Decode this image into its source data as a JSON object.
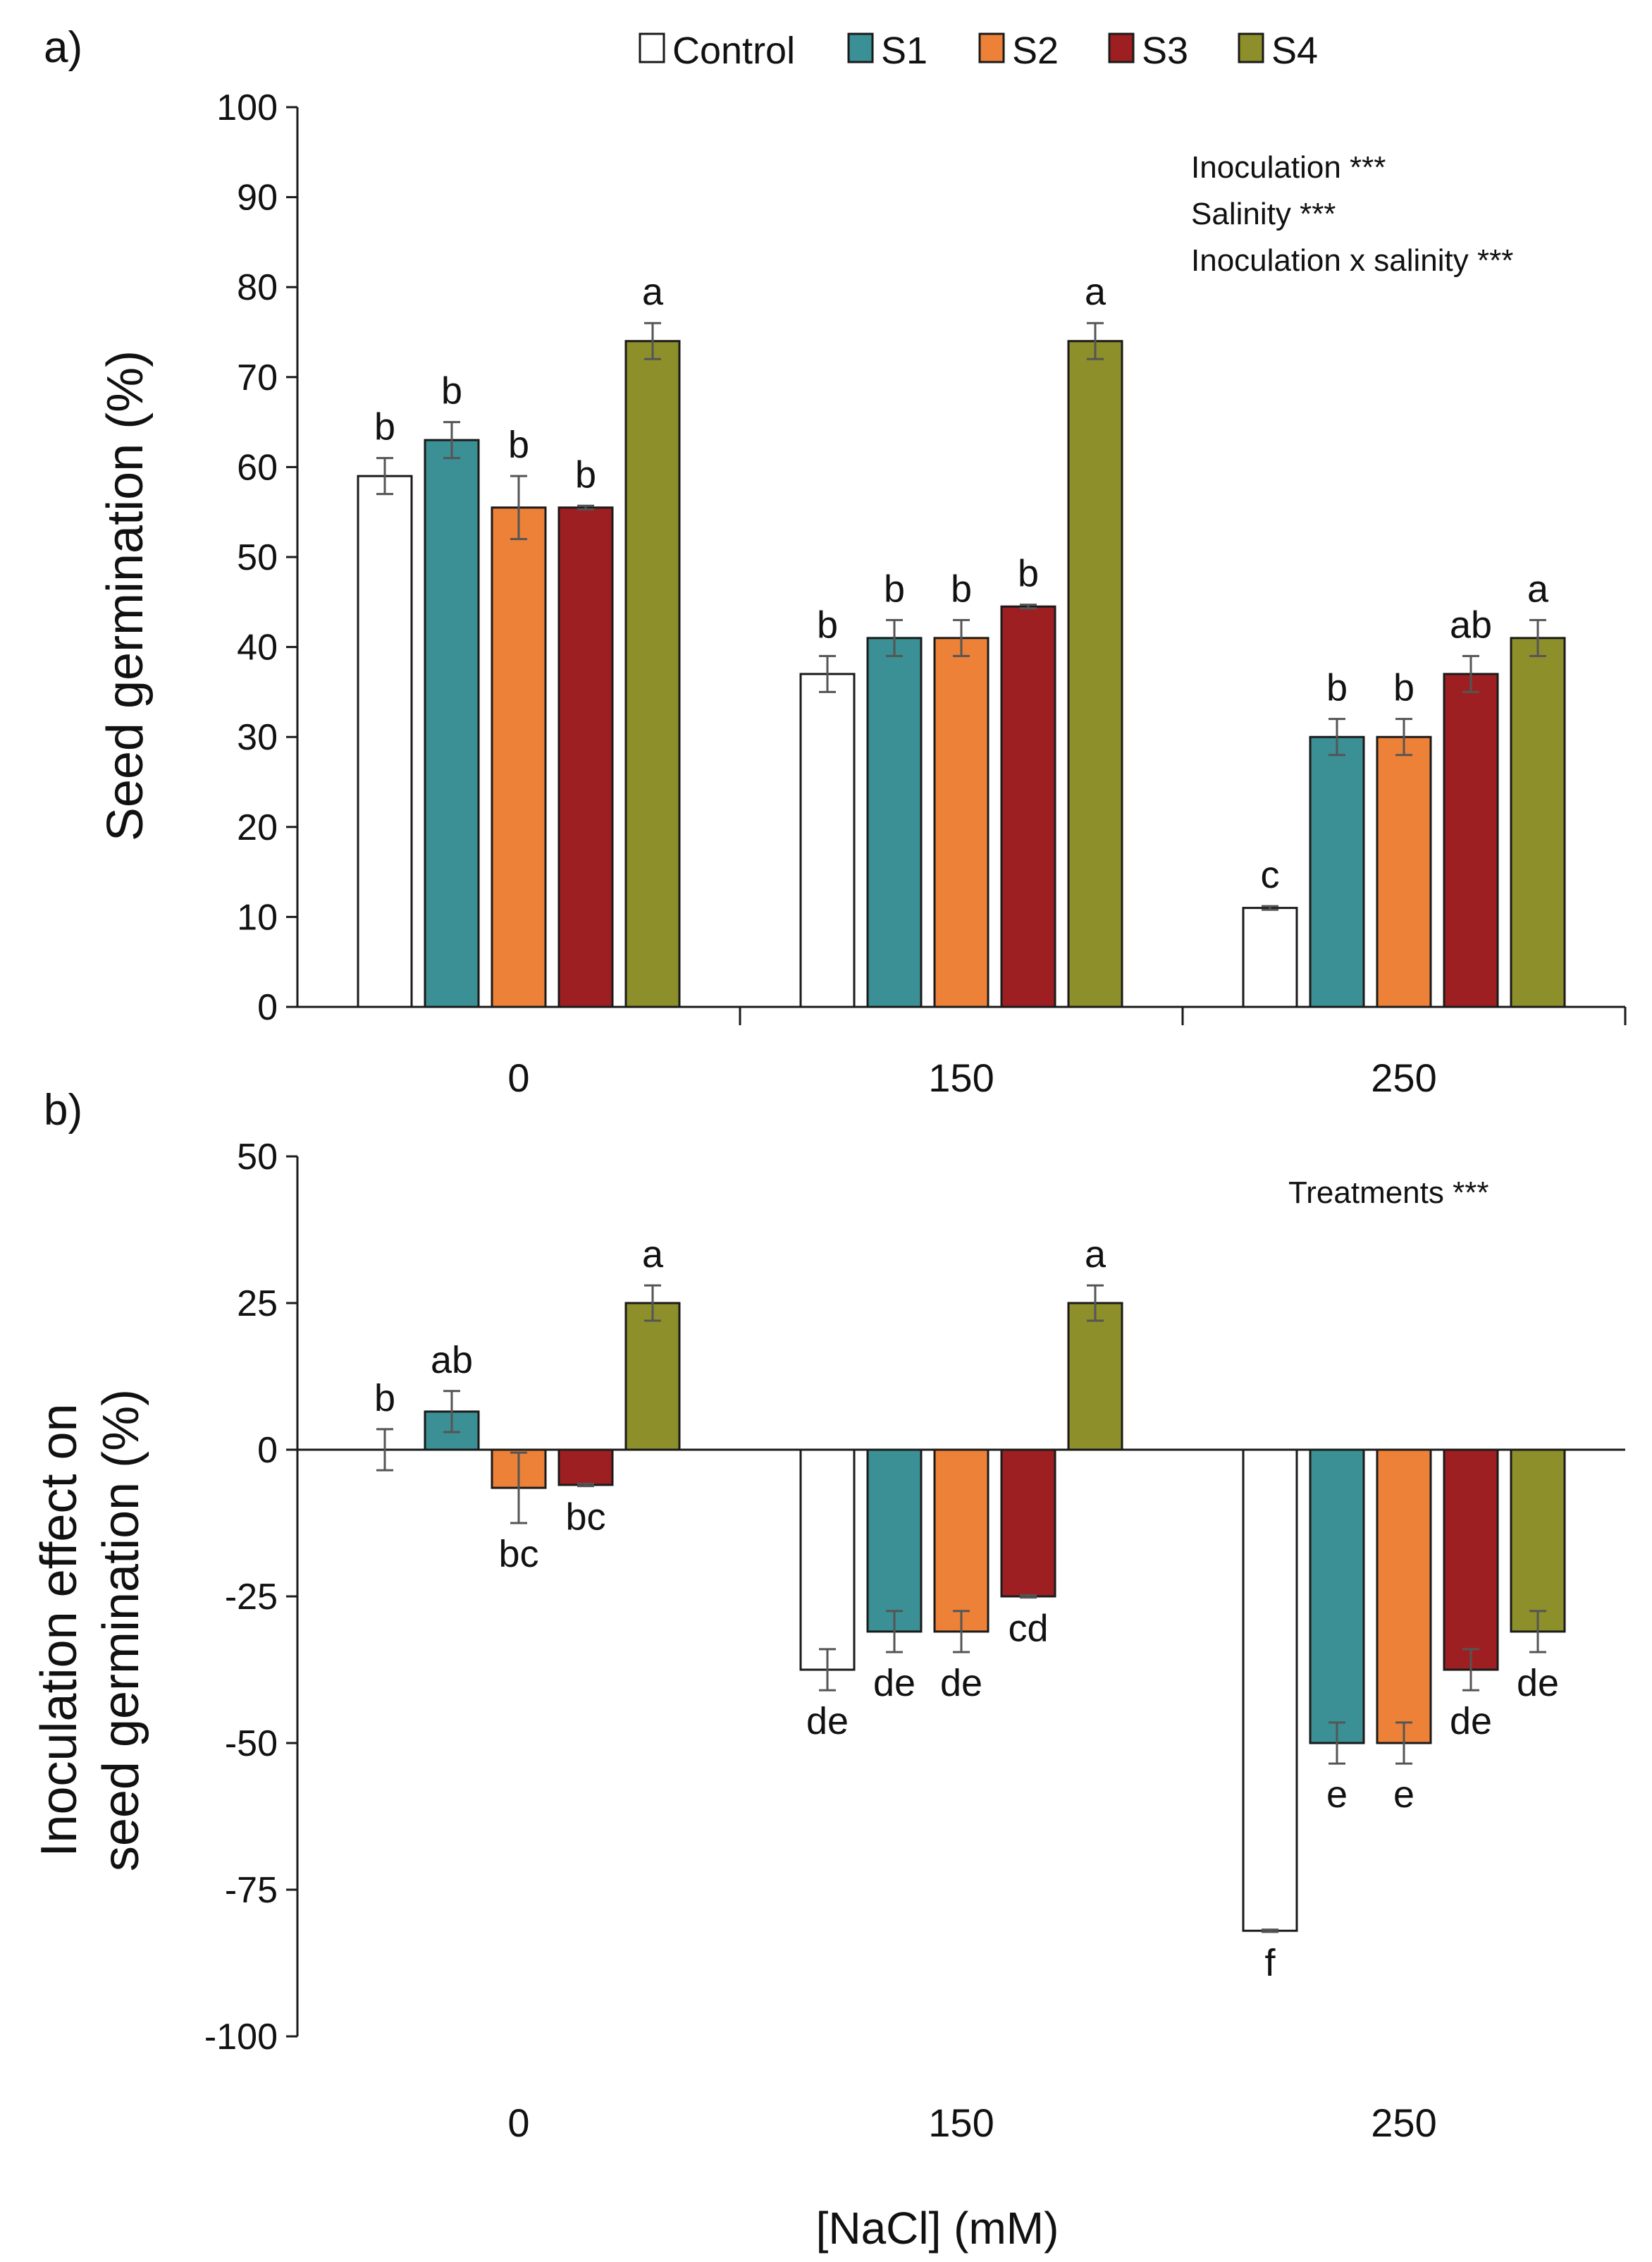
{
  "legend": {
    "entries": [
      {
        "name": "Control",
        "color": "#ffffff"
      },
      {
        "name": "S1",
        "color": "#3a9094"
      },
      {
        "name": "S2",
        "color": "#ee8138"
      },
      {
        "name": "S3",
        "color": "#9e1f21"
      },
      {
        "name": "S4",
        "color": "#8d8f2b"
      }
    ]
  },
  "chart_data": [
    {
      "panel": "a)",
      "type": "bar",
      "ylabel": "Seed germination (%)",
      "xlabel": "",
      "ylim": [
        0,
        100
      ],
      "yticks": [
        0,
        10,
        20,
        30,
        40,
        50,
        60,
        70,
        80,
        90,
        100
      ],
      "categories": [
        "0",
        "150",
        "250"
      ],
      "series": [
        {
          "name": "Control",
          "values": [
            59,
            37,
            11
          ],
          "errors": [
            2,
            2,
            0.2
          ],
          "letters": [
            "b",
            "b",
            "c"
          ]
        },
        {
          "name": "S1",
          "values": [
            63,
            41,
            30
          ],
          "errors": [
            2,
            2,
            2
          ],
          "letters": [
            "b",
            "b",
            "b"
          ]
        },
        {
          "name": "S2",
          "values": [
            55.5,
            41,
            30
          ],
          "errors": [
            3.5,
            2,
            2
          ],
          "letters": [
            "b",
            "b",
            "b"
          ]
        },
        {
          "name": "S3",
          "values": [
            55.5,
            44.5,
            37
          ],
          "errors": [
            0.2,
            0.2,
            2
          ],
          "letters": [
            "b",
            "b",
            "ab"
          ]
        },
        {
          "name": "S4",
          "values": [
            74,
            74,
            41
          ],
          "errors": [
            2,
            2,
            2
          ],
          "letters": [
            "a",
            "a",
            "a"
          ]
        }
      ],
      "annotations": [
        "Inoculation ***",
        "Salinity ***",
        "Inoculation x salinity ***"
      ]
    },
    {
      "panel": "b)",
      "type": "bar",
      "ylabel": [
        "Inoculation effect on",
        "seed germination (%)"
      ],
      "xlabel": "[NaCl] (mM)",
      "ylim": [
        -100,
        50
      ],
      "yticks": [
        50,
        25,
        0,
        -25,
        -50,
        -75,
        -100
      ],
      "categories": [
        "0",
        "150",
        "250"
      ],
      "series": [
        {
          "name": "Control",
          "values": [
            0,
            -37.5,
            -82
          ],
          "errors": [
            3.5,
            3.5,
            0.2
          ],
          "letters": [
            "b",
            "de",
            "f"
          ]
        },
        {
          "name": "S1",
          "values": [
            6.5,
            -31,
            -50
          ],
          "errors": [
            3.5,
            3.5,
            3.5
          ],
          "letters": [
            "ab",
            "de",
            "e"
          ]
        },
        {
          "name": "S2",
          "values": [
            -6.5,
            -31,
            -50
          ],
          "errors": [
            6,
            3.5,
            3.5
          ],
          "letters": [
            "bc",
            "de",
            "e"
          ]
        },
        {
          "name": "S3",
          "values": [
            -6,
            -25,
            -37.5
          ],
          "errors": [
            0.2,
            0.2,
            3.5
          ],
          "letters": [
            "bc",
            "cd",
            "de"
          ]
        },
        {
          "name": "S4",
          "values": [
            25,
            25,
            -31
          ],
          "errors": [
            3,
            3,
            3.5
          ],
          "letters": [
            "a",
            "a",
            "de"
          ]
        }
      ],
      "annotations": [
        "Treatments ***"
      ]
    }
  ]
}
